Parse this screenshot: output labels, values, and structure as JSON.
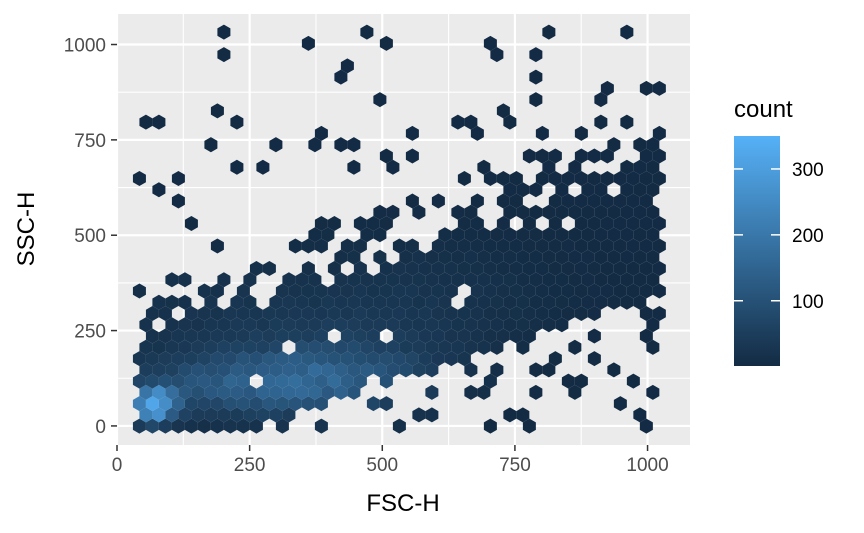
{
  "chart_data": {
    "type": "heatmap",
    "subtype": "hexbin",
    "xlabel": "FSC-H",
    "ylabel": "SSC-H",
    "xlim": [
      0,
      1080
    ],
    "ylim": [
      -50,
      1080
    ],
    "x_ticks": [
      0,
      250,
      500,
      750,
      1000
    ],
    "y_ticks": [
      0,
      250,
      500,
      750,
      1000
    ],
    "x_tick_labels": [
      "0",
      "250",
      "500",
      "750",
      "1000"
    ],
    "y_tick_labels": [
      "0",
      "250",
      "500",
      "750",
      "1000"
    ],
    "grid": true,
    "legend": {
      "title": "count",
      "placement": "right",
      "breaks": [
        100,
        200,
        300
      ],
      "break_labels": [
        "100",
        "200",
        "300"
      ],
      "range": [
        1,
        350
      ],
      "color_low": "#132B43",
      "color_high": "#56B1F7"
    },
    "panel_background": "#EBEBEB",
    "grid_color": "#FFFFFF",
    "density_peak": {
      "x": 70,
      "y": 55,
      "count": 340
    }
  }
}
